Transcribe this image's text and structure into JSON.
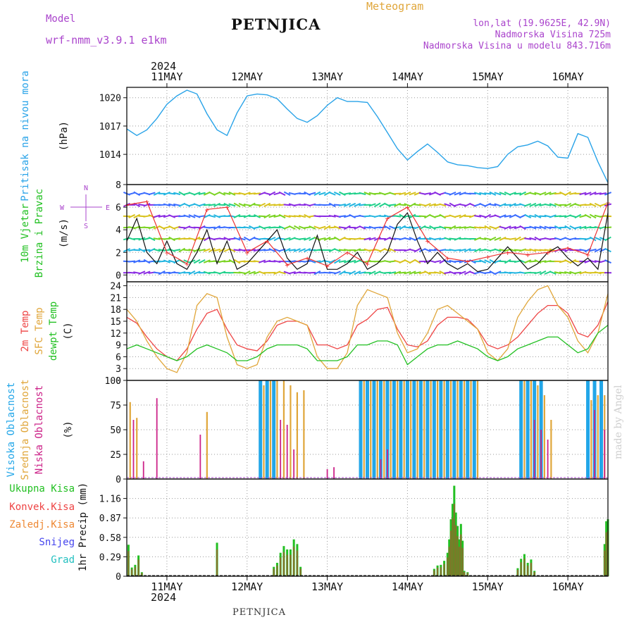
{
  "header": {
    "model_label": "Model",
    "model_name": "wrf-nmm_v3.9.1 e1km",
    "station": "PETNJICA",
    "meteogram_label": "Meteogram",
    "lonlat": "lon,lat (19.9625E, 42.9N)",
    "altitude": "Nadmorska Visina 725m",
    "model_altitude": "Nadmorska Visina u modelu 843.716m",
    "year_top": "2024",
    "year_bottom": "2024",
    "footer_station": "PETNJICA",
    "watermark": "made by Angel"
  },
  "colors": {
    "pressure": "#29a3e8",
    "wind_label": "#22c022",
    "temp2m": "#ee4444",
    "sfc": "#e0a63a",
    "dewpt": "#22c022",
    "high_cloud": "#22a6e8",
    "mid_cloud": "#e0a63a",
    "low_cloud": "#cc2288",
    "total_precip": "#22c022",
    "conv_precip": "#ee4444",
    "frozen": "#ee8833",
    "snow": "#4444ee",
    "hail": "#22c0c0",
    "compass": "#aa44cc"
  },
  "chart_data": [
    {
      "type": "line",
      "panel": "pressure",
      "ylabel_left": "Pritisak na nivou mora",
      "unit": "(hPa)",
      "yticks": [
        "1020",
        "1017",
        "1014"
      ],
      "ylim": [
        1010.8,
        1021.1
      ],
      "x_dates": [
        "11MAY",
        "12MAY",
        "13MAY",
        "14MAY",
        "15MAY",
        "16MAY"
      ],
      "x_hours_start": "10 MAY 12:00",
      "series": [
        {
          "x_hours": [
            0,
            3,
            6,
            9,
            12,
            15,
            18,
            21,
            24,
            27,
            30,
            33,
            36,
            39,
            42,
            45,
            48,
            51,
            54,
            57,
            60,
            63,
            66,
            69,
            72,
            75,
            78,
            81,
            84,
            87,
            90,
            93,
            96,
            99,
            102,
            105,
            108,
            111,
            114,
            117,
            120,
            123,
            126,
            129,
            132,
            135,
            138,
            141,
            144
          ],
          "values": [
            1016.7,
            1016.0,
            1016.6,
            1017.8,
            1019.3,
            1020.2,
            1020.8,
            1020.4,
            1018.3,
            1016.6,
            1016.0,
            1018.4,
            1020.2,
            1020.4,
            1020.3,
            1019.9,
            1018.8,
            1017.8,
            1017.4,
            1018.1,
            1019.2,
            1020.0,
            1019.6,
            1019.6,
            1019.5,
            1018.0,
            1016.3,
            1014.6,
            1013.4,
            1014.3,
            1015.1,
            1014.2,
            1013.2,
            1012.9,
            1012.8,
            1012.6,
            1012.5,
            1012.7,
            1014.0,
            1014.8,
            1015.0,
            1015.4,
            1014.9,
            1013.7,
            1013.6,
            1016.2,
            1015.8,
            1013.2,
            1011.0
          ]
        }
      ]
    },
    {
      "type": "line",
      "panel": "wind",
      "ylabel_left1": "10m Vjetar",
      "ylabel_left2": "Brzina i Pravac",
      "unit": "(m/s)",
      "compass_w": "W",
      "compass_e": "E",
      "compass_n": "N",
      "compass_s": "S",
      "yticks": [
        "8",
        "6",
        "4",
        "2",
        "0"
      ],
      "ylim": [
        -0.6,
        8
      ],
      "series": [
        {
          "name": "speed",
          "x_hours": [
            0,
            3,
            6,
            9,
            12,
            15,
            18,
            21,
            24,
            27,
            30,
            33,
            36,
            39,
            42,
            45,
            48,
            51,
            54,
            57,
            60,
            63,
            66,
            69,
            72,
            75,
            78,
            81,
            84,
            87,
            90,
            93,
            96,
            99,
            102,
            105,
            108,
            111,
            114,
            117,
            120,
            123,
            126,
            129,
            132,
            135,
            138,
            141,
            144
          ],
          "values": [
            3.0,
            5.0,
            2.0,
            1.0,
            3.0,
            1.0,
            0.5,
            2.0,
            4.0,
            1.0,
            3.0,
            0.5,
            1.0,
            2.0,
            3.0,
            4.0,
            1.5,
            0.5,
            1.0,
            3.5,
            0.5,
            0.5,
            1.0,
            2.0,
            0.5,
            1.0,
            2.0,
            4.5,
            5.5,
            3.0,
            1.0,
            2.0,
            1.0,
            0.5,
            1.0,
            0.3,
            0.5,
            1.5,
            2.5,
            1.5,
            0.5,
            1.0,
            2.0,
            2.5,
            1.5,
            0.8,
            1.5,
            0.5,
            5.5
          ]
        },
        {
          "name": "gust",
          "x_hours": [
            0,
            6,
            12,
            18,
            24,
            30,
            36,
            42,
            48,
            54,
            60,
            66,
            72,
            78,
            84,
            90,
            96,
            102,
            108,
            114,
            120,
            126,
            132,
            138,
            144
          ],
          "values": [
            6.2,
            6.5,
            2.0,
            1.0,
            5.8,
            6.0,
            2.0,
            3.0,
            0.9,
            1.5,
            0.8,
            2.0,
            1.0,
            5.0,
            6.0,
            3.0,
            1.5,
            1.2,
            1.6,
            2.0,
            1.8,
            2.0,
            2.4,
            1.8,
            6.4
          ]
        }
      ]
    },
    {
      "type": "line",
      "panel": "temperature",
      "ylabel_1": "2m Temp",
      "ylabel_2": "SFC Temp",
      "ylabel_3": "dewpt Temp",
      "unit": "(C)",
      "yticks": [
        "24",
        "21",
        "18",
        "15",
        "12",
        "9",
        "6",
        "3",
        "0"
      ],
      "ylim": [
        0,
        25
      ],
      "series": [
        {
          "name": "2m Temp",
          "x_hours": [
            0,
            3,
            6,
            9,
            12,
            15,
            18,
            21,
            24,
            27,
            30,
            33,
            36,
            39,
            42,
            45,
            48,
            51,
            54,
            57,
            60,
            63,
            66,
            69,
            72,
            75,
            78,
            81,
            84,
            87,
            90,
            93,
            96,
            99,
            102,
            105,
            108,
            111,
            114,
            117,
            120,
            123,
            126,
            129,
            132,
            135,
            138,
            141,
            144
          ],
          "values": [
            16,
            14.5,
            11,
            8,
            6,
            5,
            8,
            13,
            17,
            18,
            13,
            9,
            8,
            7.5,
            10,
            14,
            15,
            15,
            14,
            9,
            9,
            8,
            9,
            14,
            15.5,
            18,
            18.5,
            13,
            9,
            8.5,
            10,
            14,
            16,
            16,
            15.5,
            13,
            9,
            8,
            9,
            11,
            14,
            17,
            19,
            19,
            17,
            12,
            11,
            14,
            20
          ]
        },
        {
          "name": "SFC Temp",
          "x_hours": [
            0,
            3,
            6,
            9,
            12,
            15,
            18,
            21,
            24,
            27,
            30,
            33,
            36,
            39,
            42,
            45,
            48,
            51,
            54,
            57,
            60,
            63,
            66,
            69,
            72,
            75,
            78,
            81,
            84,
            87,
            90,
            93,
            96,
            99,
            102,
            105,
            108,
            111,
            114,
            117,
            120,
            123,
            126,
            129,
            132,
            135,
            138,
            141,
            144
          ],
          "values": [
            18,
            15,
            10,
            6,
            3,
            2,
            7,
            19,
            22,
            21,
            11,
            4,
            3,
            4,
            11,
            15,
            16,
            15,
            14,
            6,
            3,
            3,
            7,
            19,
            23,
            22,
            21,
            12,
            7,
            8,
            12,
            18,
            19,
            17,
            15,
            13,
            7,
            5,
            8,
            16,
            20,
            23,
            24,
            19,
            16,
            10,
            7,
            12,
            22
          ]
        },
        {
          "name": "dewpt Temp",
          "x_hours": [
            0,
            3,
            6,
            9,
            12,
            15,
            18,
            21,
            24,
            27,
            30,
            33,
            36,
            39,
            42,
            45,
            48,
            51,
            54,
            57,
            60,
            63,
            66,
            69,
            72,
            75,
            78,
            81,
            84,
            87,
            90,
            93,
            96,
            99,
            102,
            105,
            108,
            111,
            114,
            117,
            120,
            123,
            126,
            129,
            132,
            135,
            138,
            141,
            144
          ],
          "values": [
            8,
            9,
            8,
            7,
            6,
            5,
            6,
            8,
            9,
            8,
            7,
            5,
            5,
            6,
            8,
            9,
            9,
            9,
            8,
            5,
            5,
            5,
            6,
            9,
            9,
            10,
            10,
            9,
            4,
            6,
            8,
            9,
            9,
            10,
            9,
            8,
            6,
            5,
            6,
            8,
            9,
            10,
            11,
            11,
            9,
            7,
            8,
            12,
            14
          ]
        }
      ]
    },
    {
      "type": "bar",
      "panel": "cloud",
      "ylabel_1": "Visoka Oblacnost",
      "ylabel_2": "Srednja Oblacnost",
      "ylabel_3": "Niska Oblacnost",
      "unit": "(%)",
      "yticks": [
        "100",
        "75",
        "50",
        "25",
        "0"
      ],
      "ylim": [
        0,
        100
      ],
      "series": [
        {
          "name": "Visoka Oblacnost",
          "x_hours": [
            40,
            42,
            44,
            70,
            72,
            74,
            76,
            78,
            80,
            82,
            84,
            86,
            88,
            90,
            92,
            94,
            96,
            98,
            100,
            102,
            104,
            118,
            120,
            122,
            124,
            138,
            140,
            142
          ],
          "values": [
            100,
            100,
            100,
            100,
            100,
            100,
            100,
            100,
            100,
            100,
            100,
            100,
            100,
            100,
            100,
            100,
            100,
            100,
            100,
            100,
            100,
            100,
            100,
            100,
            100,
            100,
            100,
            100
          ]
        },
        {
          "name": "Srednja Oblacnost",
          "x_hours": [
            1,
            3,
            24,
            41,
            43,
            45,
            47,
            49,
            51,
            53,
            71,
            73,
            75,
            77,
            79,
            81,
            83,
            85,
            87,
            89,
            91,
            93,
            95,
            97,
            99,
            101,
            103,
            105,
            119,
            121,
            123,
            125,
            127,
            139,
            141,
            143
          ],
          "values": [
            78,
            62,
            68,
            95,
            100,
            100,
            100,
            95,
            88,
            90,
            100,
            100,
            100,
            100,
            100,
            100,
            100,
            100,
            100,
            100,
            100,
            100,
            100,
            100,
            100,
            100,
            100,
            100,
            100,
            100,
            95,
            85,
            60,
            80,
            85,
            85
          ]
        },
        {
          "name": "Niska Oblacnost",
          "x_hours": [
            2,
            5,
            9,
            22,
            46,
            48,
            50,
            60,
            62,
            76,
            78,
            122,
            124,
            126,
            140,
            143
          ],
          "values": [
            60,
            18,
            82,
            45,
            60,
            55,
            30,
            10,
            12,
            20,
            30,
            60,
            50,
            40,
            70,
            50
          ]
        }
      ]
    },
    {
      "type": "bar",
      "panel": "precip",
      "ylabel_1": "Ukupna Kisa",
      "ylabel_2": "Konvek.Kisa",
      "ylabel_3": "Zaledj.Kisa",
      "ylabel_4": "Snijeg",
      "ylabel_5": "Grad",
      "unit": "1hr Precip (mm)",
      "yticks": [
        "1.16",
        "0.87",
        "0.58",
        "0.29",
        "0"
      ],
      "ylim": [
        0,
        1.45
      ],
      "series": [
        {
          "name": "Ukupna Kisa",
          "x_hours": [
            0.5,
            1.5,
            2.5,
            3.5,
            4.5,
            27,
            44,
            45,
            46,
            47,
            48,
            49,
            50,
            51,
            52,
            53,
            92,
            93,
            94,
            95,
            96,
            96.5,
            97,
            97.5,
            98,
            98.5,
            99,
            99.5,
            100,
            100.5,
            101,
            102,
            117,
            118,
            119,
            120,
            121,
            122,
            143,
            143.5,
            144
          ],
          "values": [
            0.47,
            0.13,
            0.17,
            0.31,
            0.06,
            0.5,
            0.14,
            0.2,
            0.35,
            0.45,
            0.4,
            0.4,
            0.55,
            0.48,
            0.14,
            0.0,
            0.11,
            0.16,
            0.17,
            0.23,
            0.35,
            0.55,
            0.85,
            1.08,
            1.35,
            0.95,
            0.75,
            0.55,
            0.78,
            0.53,
            0.08,
            0.06,
            0.12,
            0.26,
            0.33,
            0.2,
            0.25,
            0.08,
            0.48,
            0.82,
            0.85
          ]
        }
      ]
    }
  ]
}
